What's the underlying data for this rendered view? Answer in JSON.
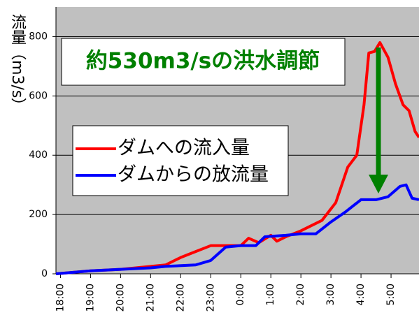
{
  "chart_data": {
    "type": "line",
    "annotation": "約530m3/sの洪水調節",
    "y_label": "流量（m3/s）",
    "xlim": [
      -0.15,
      11.93
    ],
    "xticks": [
      {
        "value": 0,
        "label": "18:00"
      },
      {
        "value": 1,
        "label": "19:00"
      },
      {
        "value": 2,
        "label": "20:00"
      },
      {
        "value": 3,
        "label": "21:00"
      },
      {
        "value": 4,
        "label": "22:00"
      },
      {
        "value": 5,
        "label": "23:00"
      },
      {
        "value": 6,
        "label": "0:00"
      },
      {
        "value": 7,
        "label": "1:00"
      },
      {
        "value": 8,
        "label": "2:00"
      },
      {
        "value": 9,
        "label": "3:00"
      },
      {
        "value": 10,
        "label": "4:00"
      },
      {
        "value": 11,
        "label": "5:00"
      }
    ],
    "ylim": [
      0,
      900
    ],
    "yticks": [
      0,
      200,
      400,
      600,
      800
    ],
    "grid": true,
    "series": [
      {
        "name": "ダムへの流入量",
        "color": "#ff0000",
        "x": [
          -0.15,
          1,
          2,
          3,
          3.5,
          4,
          4.5,
          5,
          5.5,
          6,
          6.26,
          6.6,
          7,
          7.2,
          7.5,
          8,
          8.7,
          9.16,
          9.56,
          9.86,
          10.1,
          10.26,
          10.45,
          10.63,
          10.9,
          11.15,
          11.4,
          11.6,
          11.8,
          11.93
        ],
        "values": [
          0,
          10,
          15,
          25,
          30,
          55,
          75,
          95,
          95,
          95,
          120,
          105,
          130,
          110,
          125,
          145,
          180,
          240,
          360,
          400,
          570,
          745,
          750,
          780,
          730,
          640,
          570,
          550,
          480,
          460
        ]
      },
      {
        "name": "ダムからの放流量",
        "color": "#0000ff",
        "x": [
          -0.15,
          1,
          2,
          3,
          3.5,
          4.5,
          5,
          5.5,
          6,
          6.5,
          6.8,
          7.5,
          8,
          8.5,
          9,
          9.5,
          10,
          10.5,
          10.9,
          11.3,
          11.5,
          11.7,
          11.93
        ],
        "values": [
          0,
          10,
          15,
          20,
          25,
          30,
          45,
          90,
          95,
          95,
          125,
          130,
          135,
          135,
          175,
          210,
          250,
          250,
          260,
          295,
          300,
          255,
          250
        ]
      }
    ]
  }
}
